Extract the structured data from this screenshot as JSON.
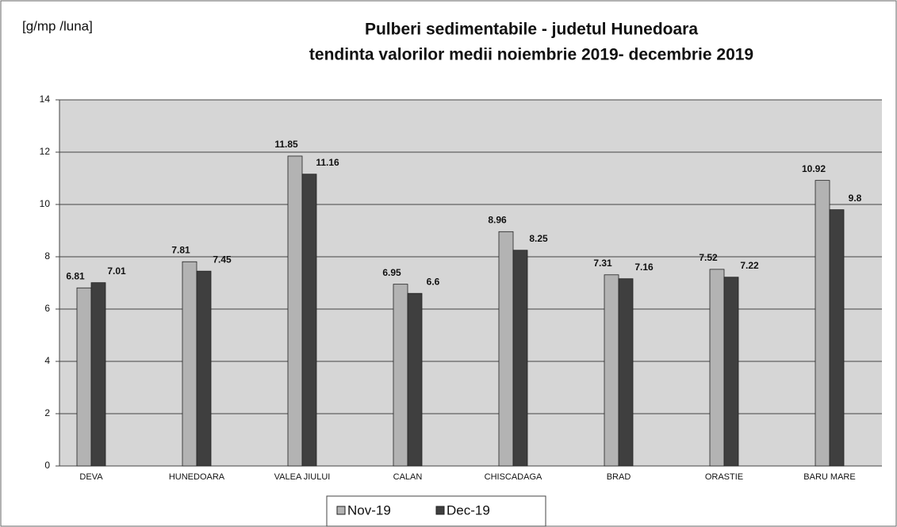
{
  "chart_data": {
    "type": "bar",
    "title": "Pulberi sedimentabile - judetul Hunedoara",
    "subtitle": "tendinta valorilor medii noiembrie  2019- decembrie 2019",
    "y_label": "[g/mp /luna]",
    "categories": [
      "DEVA",
      "HUNEDOARA",
      "VALEA JIULUI",
      "CALAN",
      "CHISCADAGA",
      "BRAD",
      "ORASTIE",
      "BARU MARE"
    ],
    "series": [
      {
        "name": "Nov-19",
        "color": "#b3b3b3",
        "values": [
          6.81,
          7.81,
          11.85,
          6.95,
          8.96,
          7.31,
          7.52,
          10.92
        ]
      },
      {
        "name": "Dec-19",
        "color": "#3f3f3f",
        "values": [
          7.01,
          7.45,
          11.16,
          6.6,
          8.25,
          7.16,
          7.22,
          9.8
        ]
      }
    ],
    "ylim": [
      0,
      14
    ],
    "yticks": [
      0,
      2,
      4,
      6,
      8,
      10,
      12,
      14
    ],
    "grid": true,
    "legend": "bottom"
  }
}
